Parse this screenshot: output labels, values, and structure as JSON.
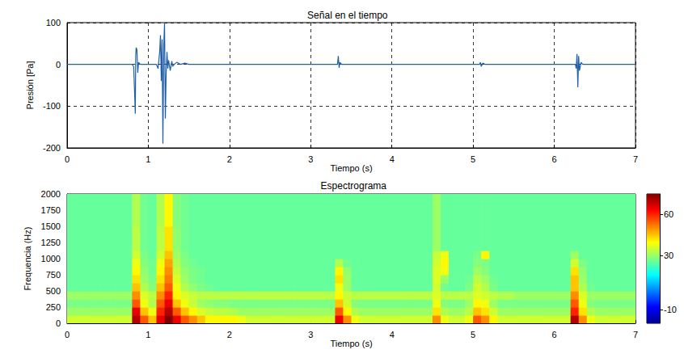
{
  "chart_data": [
    {
      "type": "line",
      "title": "Señal en el tiempo",
      "x_label": "Tiempo (s)",
      "y_label": "Presión [Pa]",
      "x": [
        0,
        0.8,
        0.82,
        0.83,
        0.84,
        0.845,
        0.85,
        0.86,
        0.87,
        0.88,
        0.9,
        0.95,
        1.1,
        1.12,
        1.14,
        1.15,
        1.16,
        1.17,
        1.18,
        1.19,
        1.2,
        1.21,
        1.22,
        1.23,
        1.24,
        1.25,
        1.27,
        1.29,
        1.3,
        1.32,
        1.35,
        1.4,
        1.45,
        1.5,
        3.33,
        3.34,
        3.35,
        3.36,
        3.38,
        5.08,
        5.09,
        5.1,
        5.12,
        5.15,
        6.26,
        6.27,
        6.28,
        6.29,
        6.3,
        6.31,
        6.33,
        6.35,
        7
      ],
      "values": [
        0,
        0,
        -5,
        -60,
        -118,
        20,
        40,
        35,
        -20,
        5,
        0,
        0,
        0,
        -10,
        30,
        70,
        -40,
        60,
        -190,
        40,
        100,
        -130,
        -20,
        30,
        -10,
        10,
        -15,
        8,
        -5,
        0,
        5,
        0,
        3,
        0,
        0,
        20,
        -8,
        5,
        0,
        0,
        5,
        -5,
        3,
        0,
        0,
        -10,
        25,
        -55,
        20,
        -15,
        5,
        0,
        0
      ],
      "color": "#1f5fa8",
      "xlim": [
        0,
        7
      ],
      "xticks": [
        0,
        1,
        2,
        3,
        4,
        5,
        6,
        7
      ],
      "ylim": [
        -200,
        100
      ],
      "yticks": [
        -200,
        -100,
        0,
        100
      ],
      "grid": true
    },
    {
      "type": "heatmap",
      "title": "Espectrograma",
      "x_label": "Tiempo (s)",
      "y_label": "Frequencia (Hz)",
      "x_edges": [
        0,
        0.1,
        0.2,
        0.3,
        0.4,
        0.5,
        0.6,
        0.7,
        0.8,
        0.9,
        1,
        1.1,
        1.2,
        1.3,
        1.4,
        1.5,
        1.6,
        1.7,
        1.8,
        1.9,
        2,
        2.1,
        2.2,
        2.3,
        2.4,
        2.5,
        2.6,
        2.7,
        2.8,
        2.9,
        3,
        3.1,
        3.2,
        3.3,
        3.4,
        3.5,
        3.6,
        3.7,
        3.8,
        3.9,
        4,
        4.1,
        4.2,
        4.3,
        4.4,
        4.5,
        4.6,
        4.7,
        4.8,
        4.9,
        5,
        5.1,
        5.2,
        5.3,
        5.4,
        5.5,
        5.6,
        5.7,
        5.8,
        5.9,
        6,
        6.1,
        6.2,
        6.3,
        6.4,
        6.5,
        6.6,
        6.7,
        6.8,
        6.9,
        7
      ],
      "y_edges": [
        0,
        125,
        250,
        375,
        500,
        625,
        750,
        875,
        1000,
        1125,
        1250,
        1375,
        1500,
        1625,
        1750,
        1875,
        2000
      ],
      "cells": [
        [
          35,
          35,
          35,
          35,
          35,
          35,
          35,
          35,
          70,
          55,
          45,
          65,
          75,
          65,
          55,
          50,
          45,
          40,
          40,
          40,
          40,
          38,
          35,
          35,
          35,
          35,
          35,
          35,
          35,
          35,
          35,
          35,
          35,
          65,
          50,
          38,
          35,
          35,
          35,
          35,
          35,
          35,
          35,
          35,
          35,
          50,
          38,
          35,
          35,
          38,
          55,
          50,
          40,
          35,
          35,
          35,
          35,
          35,
          35,
          35,
          35,
          35,
          70,
          50,
          38,
          35,
          35,
          35,
          35,
          35
        ],
        [
          30,
          30,
          30,
          30,
          30,
          30,
          30,
          30,
          65,
          45,
          38,
          60,
          70,
          55,
          45,
          40,
          36,
          34,
          33,
          33,
          32,
          30,
          30,
          30,
          30,
          30,
          30,
          30,
          30,
          30,
          30,
          30,
          30,
          55,
          40,
          32,
          30,
          30,
          30,
          30,
          30,
          30,
          30,
          30,
          30,
          42,
          32,
          30,
          30,
          33,
          45,
          42,
          35,
          30,
          30,
          30,
          30,
          30,
          30,
          30,
          30,
          30,
          60,
          42,
          32,
          30,
          30,
          30,
          30,
          30
        ],
        [
          27,
          27,
          27,
          27,
          27,
          27,
          27,
          27,
          55,
          38,
          32,
          55,
          65,
          45,
          38,
          34,
          30,
          29,
          28,
          28,
          27,
          27,
          27,
          27,
          27,
          27,
          27,
          27,
          27,
          27,
          27,
          27,
          27,
          45,
          35,
          28,
          27,
          27,
          27,
          27,
          27,
          27,
          27,
          27,
          27,
          38,
          28,
          27,
          27,
          30,
          40,
          38,
          30,
          27,
          27,
          27,
          27,
          27,
          27,
          27,
          27,
          27,
          55,
          38,
          28,
          27,
          27,
          27,
          27,
          27
        ],
        [
          30,
          30,
          30,
          30,
          30,
          30,
          30,
          30,
          50,
          36,
          33,
          50,
          60,
          40,
          36,
          34,
          33,
          33,
          33,
          33,
          33,
          33,
          33,
          33,
          33,
          33,
          33,
          33,
          33,
          33,
          33,
          33,
          33,
          40,
          34,
          33,
          33,
          33,
          33,
          33,
          33,
          33,
          33,
          33,
          33,
          36,
          33,
          33,
          33,
          33,
          36,
          35,
          33,
          32,
          32,
          30,
          30,
          30,
          30,
          30,
          30,
          30,
          50,
          36,
          30,
          30,
          30,
          30,
          30,
          30
        ],
        [
          25,
          25,
          25,
          25,
          25,
          25,
          25,
          25,
          45,
          32,
          28,
          45,
          55,
          38,
          32,
          29,
          27,
          26,
          25,
          25,
          25,
          25,
          25,
          25,
          25,
          25,
          25,
          25,
          25,
          25,
          25,
          25,
          25,
          38,
          30,
          25,
          25,
          25,
          25,
          25,
          25,
          25,
          25,
          25,
          25,
          35,
          26,
          25,
          25,
          27,
          35,
          32,
          27,
          25,
          25,
          25,
          25,
          25,
          25,
          25,
          25,
          25,
          45,
          32,
          26,
          25,
          25,
          25,
          25,
          25
        ],
        [
          25,
          25,
          25,
          25,
          25,
          25,
          25,
          25,
          42,
          30,
          27,
          42,
          52,
          36,
          30,
          27,
          26,
          25,
          25,
          25,
          25,
          25,
          25,
          25,
          25,
          25,
          25,
          25,
          25,
          25,
          25,
          25,
          25,
          42,
          30,
          25,
          25,
          25,
          25,
          25,
          25,
          25,
          25,
          25,
          25,
          36,
          30,
          25,
          25,
          26,
          33,
          30,
          26,
          25,
          25,
          25,
          25,
          25,
          25,
          25,
          25,
          25,
          45,
          30,
          25,
          25,
          25,
          25,
          25,
          25
        ],
        [
          25,
          25,
          25,
          25,
          25,
          25,
          25,
          25,
          40,
          29,
          26,
          40,
          50,
          34,
          29,
          27,
          26,
          25,
          25,
          25,
          25,
          25,
          25,
          25,
          25,
          25,
          25,
          25,
          25,
          25,
          25,
          25,
          25,
          40,
          29,
          25,
          25,
          25,
          25,
          25,
          25,
          25,
          25,
          25,
          25,
          36,
          38,
          25,
          25,
          25,
          30,
          28,
          25,
          25,
          25,
          25,
          25,
          25,
          25,
          25,
          25,
          25,
          42,
          29,
          25,
          25,
          25,
          25,
          25,
          25
        ],
        [
          25,
          25,
          25,
          25,
          25,
          25,
          25,
          25,
          38,
          28,
          26,
          38,
          48,
          32,
          28,
          26,
          25,
          25,
          25,
          25,
          25,
          25,
          25,
          25,
          25,
          25,
          25,
          25,
          25,
          25,
          25,
          25,
          25,
          32,
          26,
          25,
          25,
          25,
          25,
          25,
          25,
          25,
          25,
          25,
          25,
          35,
          40,
          25,
          25,
          25,
          28,
          27,
          25,
          25,
          25,
          25,
          25,
          25,
          25,
          25,
          25,
          25,
          35,
          27,
          25,
          25,
          25,
          25,
          25,
          25
        ],
        [
          25,
          25,
          25,
          25,
          25,
          25,
          25,
          25,
          35,
          27,
          25,
          35,
          45,
          30,
          27,
          25,
          25,
          25,
          25,
          25,
          25,
          25,
          25,
          25,
          25,
          25,
          25,
          25,
          25,
          25,
          25,
          25,
          25,
          25,
          25,
          25,
          25,
          25,
          25,
          25,
          25,
          25,
          25,
          25,
          25,
          34,
          38,
          25,
          25,
          25,
          27,
          40,
          25,
          25,
          25,
          25,
          25,
          25,
          25,
          25,
          25,
          25,
          30,
          25,
          25,
          25,
          25,
          25,
          25,
          25
        ],
        [
          25,
          25,
          25,
          25,
          25,
          25,
          25,
          25,
          33,
          26,
          25,
          33,
          42,
          29,
          26,
          25,
          25,
          25,
          25,
          25,
          25,
          25,
          25,
          25,
          25,
          25,
          25,
          25,
          25,
          25,
          25,
          25,
          25,
          25,
          25,
          25,
          25,
          25,
          25,
          25,
          25,
          25,
          25,
          25,
          25,
          30,
          25,
          25,
          25,
          25,
          25,
          25,
          25,
          25,
          25,
          25,
          25,
          25,
          25,
          25,
          25,
          25,
          25,
          25,
          25,
          25,
          25,
          25,
          25,
          25
        ],
        [
          25,
          25,
          25,
          25,
          25,
          25,
          25,
          25,
          33,
          26,
          25,
          33,
          42,
          29,
          26,
          25,
          25,
          25,
          25,
          25,
          25,
          25,
          25,
          25,
          25,
          25,
          25,
          25,
          25,
          25,
          25,
          25,
          25,
          25,
          25,
          25,
          25,
          25,
          25,
          25,
          25,
          25,
          25,
          25,
          25,
          30,
          25,
          25,
          25,
          25,
          25,
          25,
          25,
          25,
          25,
          25,
          25,
          25,
          25,
          25,
          25,
          25,
          25,
          25,
          25,
          25,
          25,
          25,
          25,
          25
        ],
        [
          25,
          25,
          25,
          25,
          25,
          25,
          25,
          25,
          33,
          26,
          25,
          33,
          42,
          29,
          26,
          25,
          25,
          25,
          25,
          25,
          25,
          25,
          25,
          25,
          25,
          25,
          25,
          25,
          25,
          25,
          25,
          25,
          25,
          25,
          25,
          25,
          25,
          25,
          25,
          25,
          25,
          25,
          25,
          25,
          25,
          30,
          25,
          25,
          25,
          25,
          25,
          25,
          25,
          25,
          25,
          25,
          25,
          25,
          25,
          25,
          25,
          25,
          25,
          25,
          25,
          25,
          25,
          25,
          25,
          25
        ],
        [
          25,
          25,
          25,
          25,
          25,
          25,
          25,
          25,
          32,
          26,
          25,
          32,
          40,
          28,
          26,
          25,
          25,
          25,
          25,
          25,
          25,
          25,
          25,
          25,
          25,
          25,
          25,
          25,
          25,
          25,
          25,
          25,
          25,
          25,
          25,
          25,
          25,
          25,
          25,
          25,
          25,
          25,
          25,
          25,
          25,
          30,
          25,
          25,
          25,
          25,
          25,
          25,
          25,
          25,
          25,
          25,
          25,
          25,
          25,
          25,
          25,
          25,
          25,
          25,
          25,
          25,
          25,
          25,
          25,
          25
        ],
        [
          25,
          25,
          25,
          25,
          25,
          25,
          25,
          25,
          32,
          26,
          25,
          32,
          40,
          28,
          26,
          25,
          25,
          25,
          25,
          25,
          25,
          25,
          25,
          25,
          25,
          25,
          25,
          25,
          25,
          25,
          25,
          25,
          25,
          25,
          25,
          25,
          25,
          25,
          25,
          25,
          25,
          25,
          25,
          25,
          25,
          30,
          25,
          25,
          25,
          25,
          25,
          25,
          25,
          25,
          25,
          25,
          25,
          25,
          25,
          25,
          25,
          25,
          25,
          25,
          25,
          25,
          25,
          25,
          25,
          25
        ],
        [
          25,
          25,
          25,
          25,
          25,
          25,
          25,
          25,
          32,
          26,
          25,
          32,
          40,
          28,
          26,
          25,
          25,
          25,
          25,
          25,
          25,
          25,
          25,
          25,
          25,
          25,
          25,
          25,
          25,
          25,
          25,
          25,
          25,
          25,
          25,
          25,
          25,
          25,
          25,
          25,
          25,
          25,
          25,
          25,
          25,
          30,
          25,
          25,
          25,
          25,
          25,
          25,
          25,
          25,
          25,
          25,
          25,
          25,
          25,
          25,
          25,
          25,
          25,
          25,
          25,
          25,
          25,
          25,
          25,
          25
        ],
        [
          25,
          25,
          25,
          25,
          25,
          25,
          25,
          25,
          32,
          26,
          25,
          32,
          40,
          28,
          26,
          25,
          25,
          25,
          25,
          25,
          25,
          25,
          25,
          25,
          25,
          25,
          25,
          25,
          25,
          25,
          25,
          25,
          25,
          25,
          25,
          25,
          25,
          25,
          25,
          25,
          25,
          25,
          25,
          25,
          25,
          30,
          25,
          25,
          25,
          25,
          25,
          25,
          25,
          25,
          25,
          25,
          25,
          25,
          25,
          25,
          25,
          25,
          25,
          25,
          25,
          25,
          25,
          25,
          25,
          25
        ]
      ],
      "xlim": [
        0,
        7
      ],
      "xticks": [
        0,
        1,
        2,
        3,
        4,
        5,
        6,
        7
      ],
      "ylim": [
        0,
        2000
      ],
      "yticks": [
        0,
        250,
        500,
        750,
        1000,
        1250,
        1500,
        1750,
        2000
      ],
      "colorbar": {
        "range": [
          -20,
          75
        ],
        "ticks": [
          -10,
          30,
          60
        ]
      },
      "grid": false
    }
  ]
}
